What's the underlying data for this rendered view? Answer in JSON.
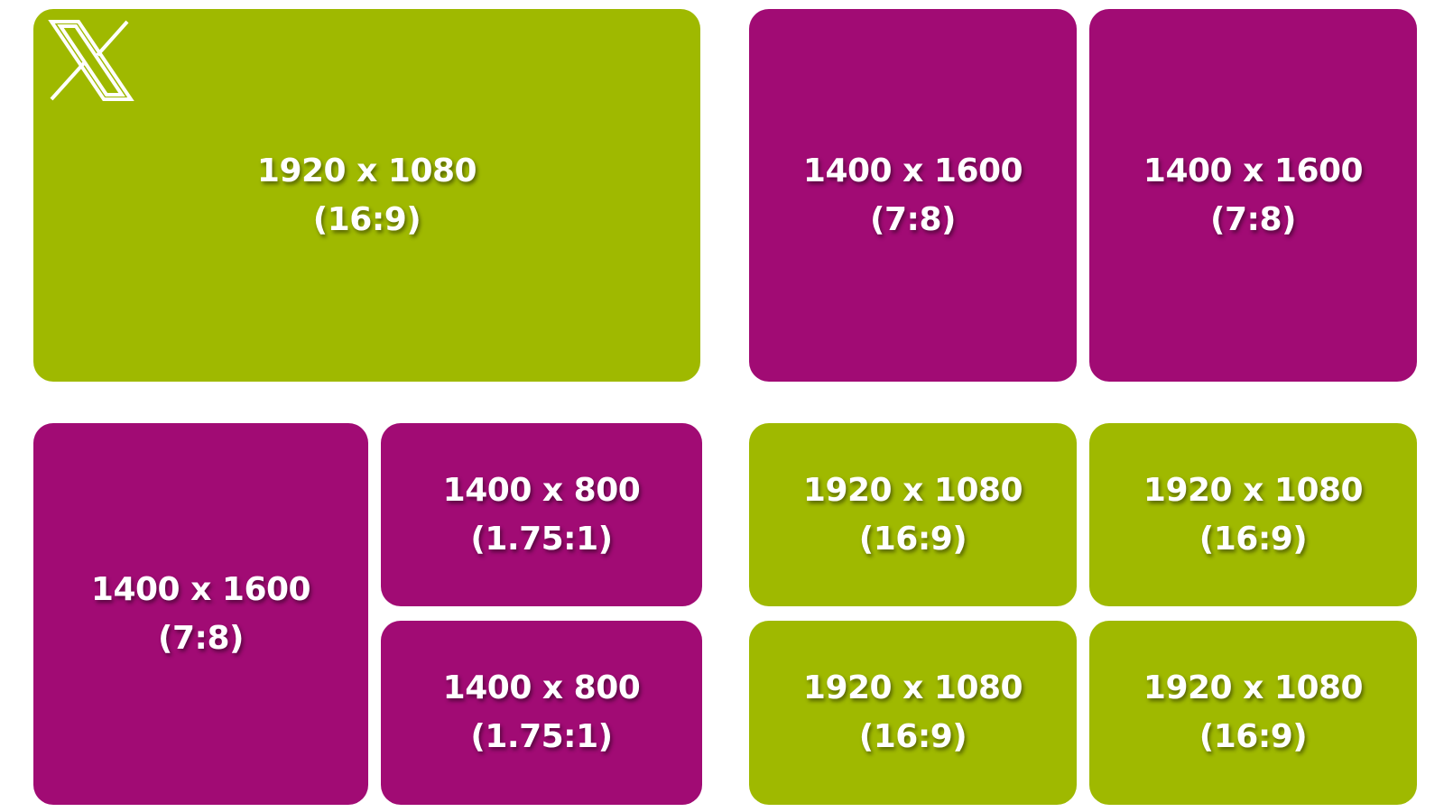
{
  "tiles": [
    {
      "size": "1920 x 1080",
      "ratio": "(16:9)"
    },
    {
      "size": "1400 x 1600",
      "ratio": "(7:8)"
    },
    {
      "size": "1400 x 1600",
      "ratio": "(7:8)"
    },
    {
      "size": "1400 x 1600",
      "ratio": "(7:8)"
    },
    {
      "size": "1400 x 800",
      "ratio": "(1.75:1)"
    },
    {
      "size": "1400 x 800",
      "ratio": "(1.75:1)"
    },
    {
      "size": "1920 x 1080",
      "ratio": "(16:9)"
    },
    {
      "size": "1920 x 1080",
      "ratio": "(16:9)"
    },
    {
      "size": "1920 x 1080",
      "ratio": "(16:9)"
    },
    {
      "size": "1920 x 1080",
      "ratio": "(16:9)"
    }
  ]
}
